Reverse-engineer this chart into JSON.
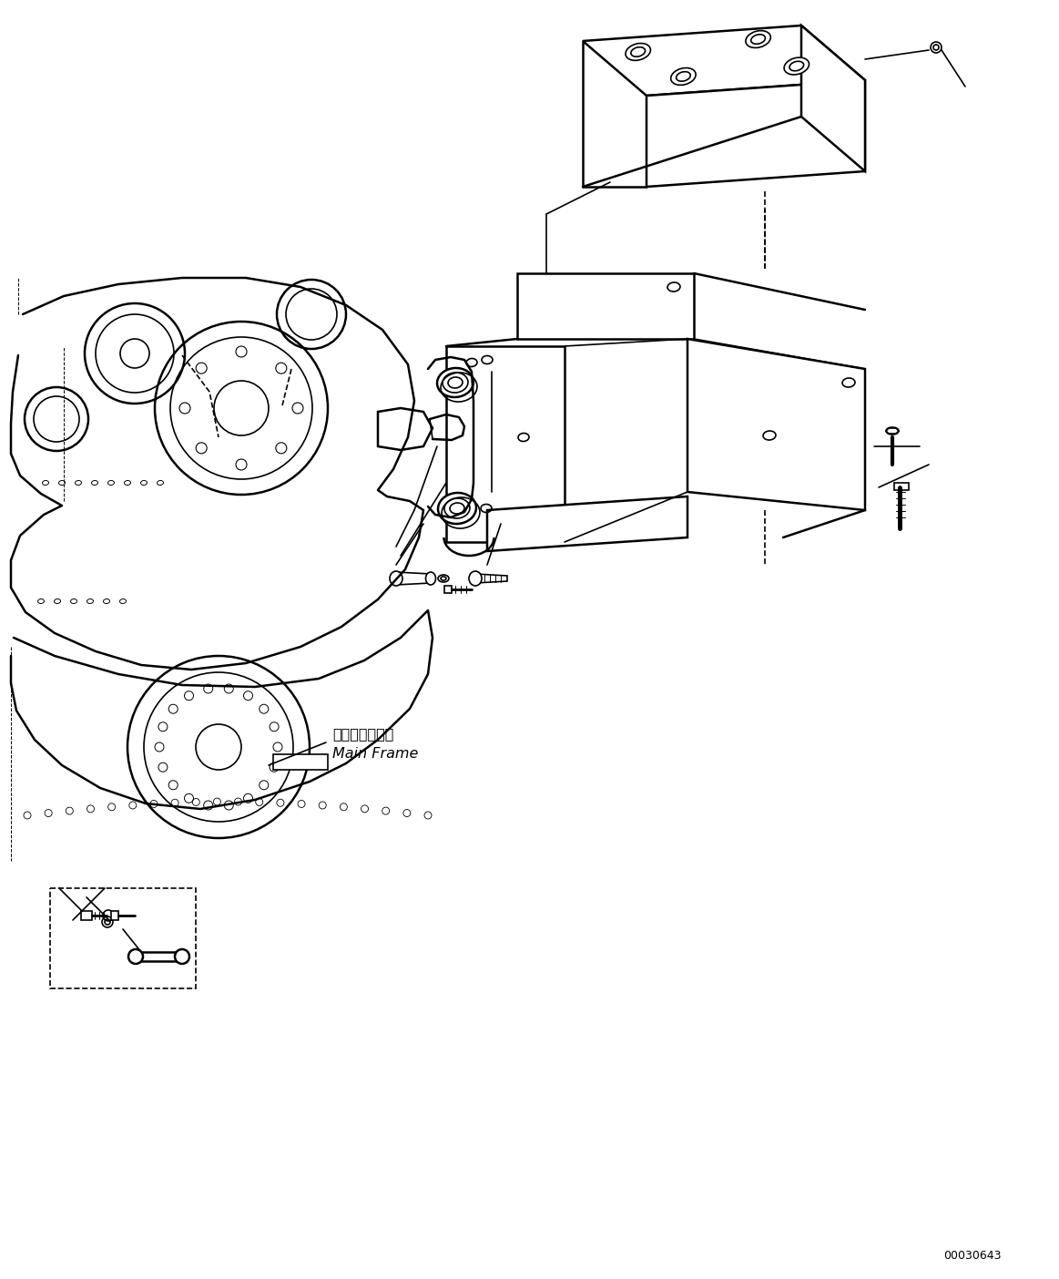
{
  "bg_color": "#ffffff",
  "line_color": "#000000",
  "watermark": "00030643",
  "label_jp": "メインフレーム",
  "label_en": "Main Frame"
}
